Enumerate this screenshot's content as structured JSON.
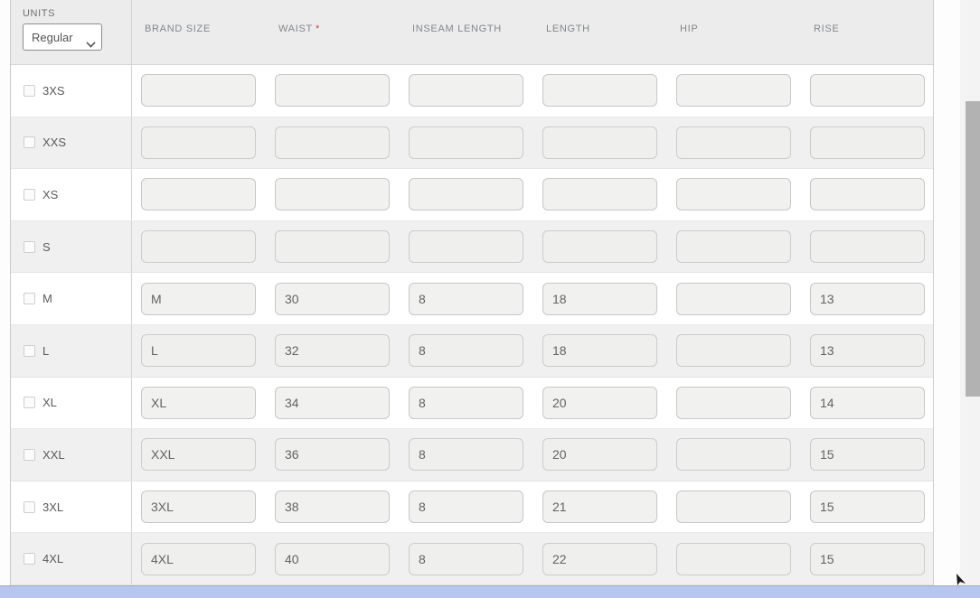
{
  "units": {
    "label": "UNITS",
    "value": "Regular",
    "options": [
      "Regular"
    ]
  },
  "table": {
    "columns": [
      {
        "label": "BRAND SIZE",
        "required": false
      },
      {
        "label": "WAIST",
        "required": true
      },
      {
        "label": "INSEAM LENGTH",
        "required": false
      },
      {
        "label": "LENGTH",
        "required": false
      },
      {
        "label": "HIP",
        "required": false
      },
      {
        "label": "RISE",
        "required": false
      }
    ],
    "rows": [
      {
        "size": "3XS",
        "checked": false,
        "values": [
          "",
          "",
          "",
          "",
          "",
          ""
        ]
      },
      {
        "size": "XXS",
        "checked": false,
        "values": [
          "",
          "",
          "",
          "",
          "",
          ""
        ]
      },
      {
        "size": "XS",
        "checked": false,
        "values": [
          "",
          "",
          "",
          "",
          "",
          ""
        ]
      },
      {
        "size": "S",
        "checked": false,
        "values": [
          "",
          "",
          "",
          "",
          "",
          ""
        ]
      },
      {
        "size": "M",
        "checked": false,
        "values": [
          "M",
          "30",
          "8",
          "18",
          "",
          "13"
        ]
      },
      {
        "size": "L",
        "checked": false,
        "values": [
          "L",
          "32",
          "8",
          "18",
          "",
          "13"
        ]
      },
      {
        "size": "XL",
        "checked": false,
        "values": [
          "XL",
          "34",
          "8",
          "20",
          "",
          "14"
        ]
      },
      {
        "size": "XXL",
        "checked": false,
        "values": [
          "XXL",
          "36",
          "8",
          "20",
          "",
          "15"
        ]
      },
      {
        "size": "3XL",
        "checked": false,
        "values": [
          "3XL",
          "38",
          "8",
          "21",
          "",
          "15"
        ]
      },
      {
        "size": "4XL",
        "checked": false,
        "values": [
          "4XL",
          "40",
          "8",
          "22",
          "",
          "15"
        ]
      }
    ]
  },
  "scrollbar": {
    "thumb_visible": true
  },
  "colors": {
    "required_asterisk": "#c0503c",
    "bottom_bar": "#b7c6ef",
    "alt_row": "#f0f0f0",
    "header_bg": "#ececec",
    "scroll_thumb": "#b2b2b2"
  }
}
